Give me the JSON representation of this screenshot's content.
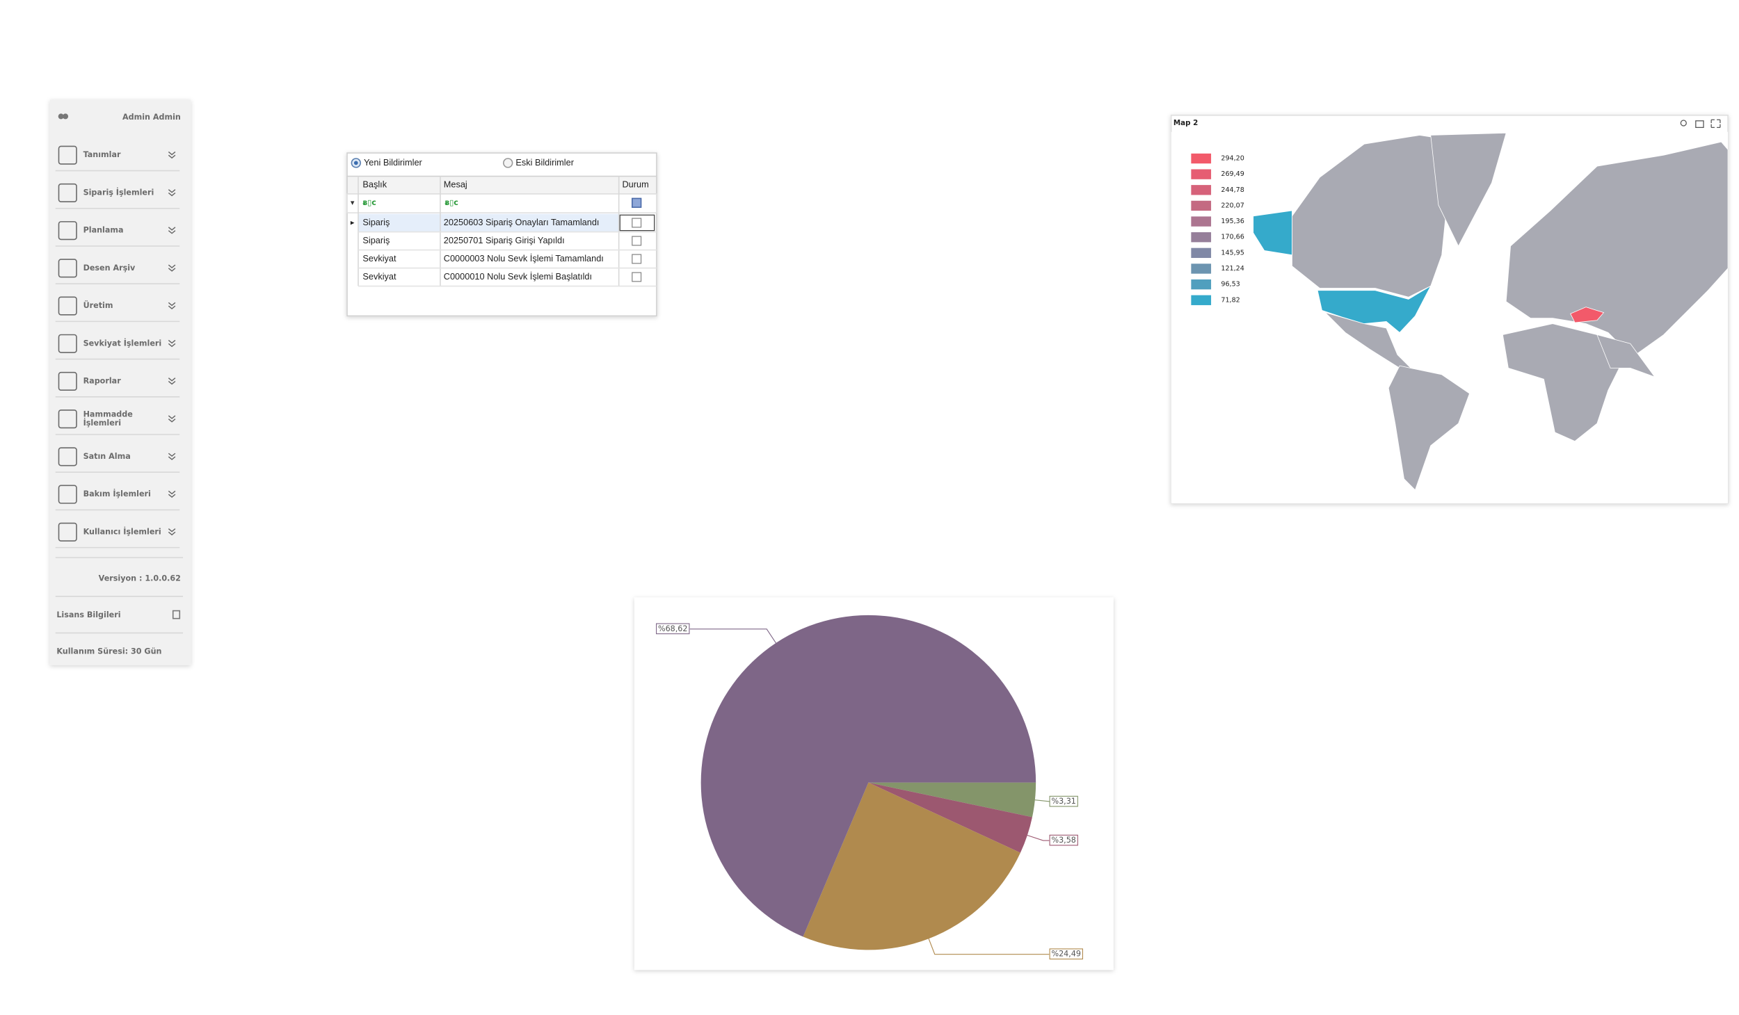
{
  "sidebar": {
    "user": "Admin Admin",
    "menu": [
      [
        "Tanımlar"
      ],
      [
        "Sipariş İşlemleri"
      ],
      [
        "Planlama"
      ],
      [
        "Desen Arşiv"
      ],
      [
        "Üretim"
      ],
      [
        "Sevkiyat İşlemleri"
      ],
      [
        "Raporlar"
      ],
      [
        "Hammadde",
        "İşlemleri"
      ],
      [
        "Satın Alma"
      ],
      [
        "Bakım İşlemleri"
      ],
      [
        "Kullanıcı İşlemleri"
      ]
    ],
    "version": "Versiyon : 1.0.0.62",
    "license": "Lisans Bilgileri",
    "usage": "Kullanım Süresi: 30 Gün"
  },
  "notifications": {
    "tabs": [
      "Yeni Bildirimler",
      "Eski Bildirimler"
    ],
    "columns": [
      "Başlık",
      "Mesaj",
      "Durum"
    ],
    "rows": [
      [
        "Sipariş",
        "20250603 Sipariş Onayları Tamamlandı"
      ],
      [
        "Sipariş",
        "20250701 Sipariş Girişi Yapıldı"
      ],
      [
        "Sevkiyat",
        "C0000003 Nolu Sevk İşlemi Tamamlandı"
      ],
      [
        "Sevkiyat",
        "C0000010 Nolu Sevk İşlemi Başlatıldı"
      ]
    ]
  },
  "map": {
    "title": "Map 2",
    "legend": [
      {
        "label": "294,20",
        "color": "#f25a6a"
      },
      {
        "label": "269,49",
        "color": "#e65d72"
      },
      {
        "label": "244,78",
        "color": "#d6627a"
      },
      {
        "label": "220,07",
        "color": "#c46a82"
      },
      {
        "label": "195,36",
        "color": "#ac7590"
      },
      {
        "label": "170,66",
        "color": "#967f9a"
      },
      {
        "label": "145,95",
        "color": "#8088a6"
      },
      {
        "label": "121,24",
        "color": "#6c94b0"
      },
      {
        "label": "96,53",
        "color": "#509fbe"
      },
      {
        "label": "71,82",
        "color": "#35aacb"
      }
    ]
  },
  "chart_data": {
    "type": "pie",
    "values": [
      3.31,
      3.58,
      24.49,
      68.62
    ],
    "value_labels": [
      "%3,31",
      "%3,58",
      "%24,49",
      "%68,62"
    ],
    "colors": [
      "#84956a",
      "#9c5870",
      "#b08a4e",
      "#7e6687"
    ]
  }
}
